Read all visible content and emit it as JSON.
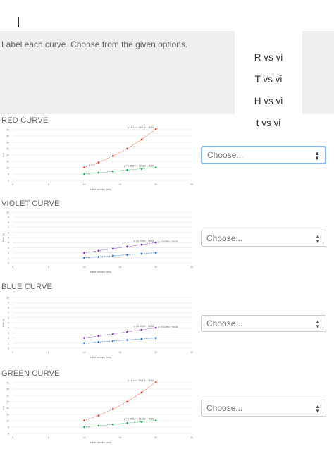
{
  "instructions": "Label each curve. Choose from the given options.",
  "options": [
    "R vs vi",
    "T vs vi",
    "H vs vi",
    "t vs vi"
  ],
  "questions": [
    {
      "title": "RED CURVE",
      "selected": "Choose..."
    },
    {
      "title": "VIOLET CURVE",
      "selected": "Choose..."
    },
    {
      "title": "BLUE CURVE",
      "selected": "Choose..."
    },
    {
      "title": "GREEN CURVE",
      "selected": "Choose..."
    }
  ],
  "colors": {
    "red": "#e8432f",
    "green": "#2aae61",
    "violet": "#7a39b8",
    "blue": "#2b6ed8",
    "focus": "#8ab4f8"
  },
  "chart_data": [
    {
      "type": "scatter",
      "xlabel": "initial velocity (m/s)",
      "ylabel": "(m)",
      "xlim": [
        0,
        25
      ],
      "ylim": [
        0,
        40
      ],
      "xticks": [
        0,
        5,
        10,
        15,
        20,
        25
      ],
      "yticks": [
        0,
        5,
        10,
        15,
        20,
        25,
        30,
        35,
        40
      ],
      "series": [
        {
          "color": "#e8432f",
          "x": [
            10,
            12,
            14,
            16,
            18,
            20
          ],
          "y": [
            10.2,
            14.1,
            19.2,
            25.0,
            32.3,
            40.5
          ],
          "eq": "y = 0.1x² − 90.17x − 39.33"
        },
        {
          "color": "#2aae61",
          "x": [
            10,
            12,
            14,
            16,
            18,
            20
          ],
          "y": [
            5.1,
            6.1,
            7.1,
            8.2,
            9.2,
            10.2
          ],
          "eq": "y = 0.5091x² − 28.12x − 26.58"
        }
      ]
    },
    {
      "type": "scatter",
      "xlabel": "initial velocity (m/s)",
      "ylabel": "time (s)",
      "xlim": [
        0,
        25
      ],
      "ylim": [
        0,
        10
      ],
      "xticks": [
        0,
        5,
        10,
        15,
        20,
        25
      ],
      "yticks": [
        0,
        1,
        2,
        3,
        4,
        5,
        6,
        7,
        8,
        9,
        10
      ],
      "series": [
        {
          "color": "#7a39b8",
          "x": [
            10,
            12,
            14,
            16,
            18,
            20
          ],
          "y": [
            2.0,
            2.4,
            2.8,
            3.2,
            3.6,
            4.0
          ],
          "eq": "y = 0.2019x − 98.33",
          "eq2": "y = 0.0789x − 90.33"
        },
        {
          "color": "#2b6ed8",
          "x": [
            10,
            12,
            14,
            16,
            18,
            20
          ],
          "y": [
            1.0,
            1.2,
            1.4,
            1.6,
            1.8,
            2.0
          ]
        }
      ]
    },
    {
      "type": "scatter",
      "xlabel": "initial velocity (m/s)",
      "ylabel": "time (s)",
      "xlim": [
        0,
        25
      ],
      "ylim": [
        0,
        10
      ],
      "xticks": [
        0,
        5,
        10,
        15,
        20,
        25
      ],
      "yticks": [
        0,
        1,
        2,
        3,
        4,
        5,
        6,
        7,
        8,
        9,
        10
      ],
      "series": [
        {
          "color": "#7a39b8",
          "x": [
            10,
            12,
            14,
            16,
            18,
            20
          ],
          "y": [
            2.0,
            2.4,
            2.8,
            3.2,
            3.6,
            4.0
          ],
          "eq": "y = 0.2019x − 98.33",
          "eq2": "y = 0.0789x − 90.33"
        },
        {
          "color": "#2b6ed8",
          "x": [
            10,
            12,
            14,
            16,
            18,
            20
          ],
          "y": [
            1.0,
            1.2,
            1.4,
            1.6,
            1.8,
            2.0
          ]
        }
      ]
    },
    {
      "type": "scatter",
      "xlabel": "initial velocity (m/s)",
      "ylabel": "(m)",
      "xlim": [
        0,
        25
      ],
      "ylim": [
        0,
        40
      ],
      "xticks": [
        0,
        5,
        10,
        15,
        20,
        25
      ],
      "yticks": [
        0,
        5,
        10,
        15,
        20,
        25,
        30,
        35,
        40
      ],
      "series": [
        {
          "color": "#e8432f",
          "x": [
            10,
            12,
            14,
            16,
            18,
            20
          ],
          "y": [
            10.2,
            14.1,
            19.2,
            25.0,
            32.3,
            40.5
          ],
          "eq": "y = 0.1x² − 90.17x − 39.33"
        },
        {
          "color": "#2aae61",
          "x": [
            10,
            12,
            14,
            16,
            18,
            20
          ],
          "y": [
            5.1,
            6.1,
            7.1,
            8.2,
            9.2,
            10.2
          ],
          "eq": "y = 0.5091x² − 28.12x − 26.58"
        }
      ]
    }
  ]
}
